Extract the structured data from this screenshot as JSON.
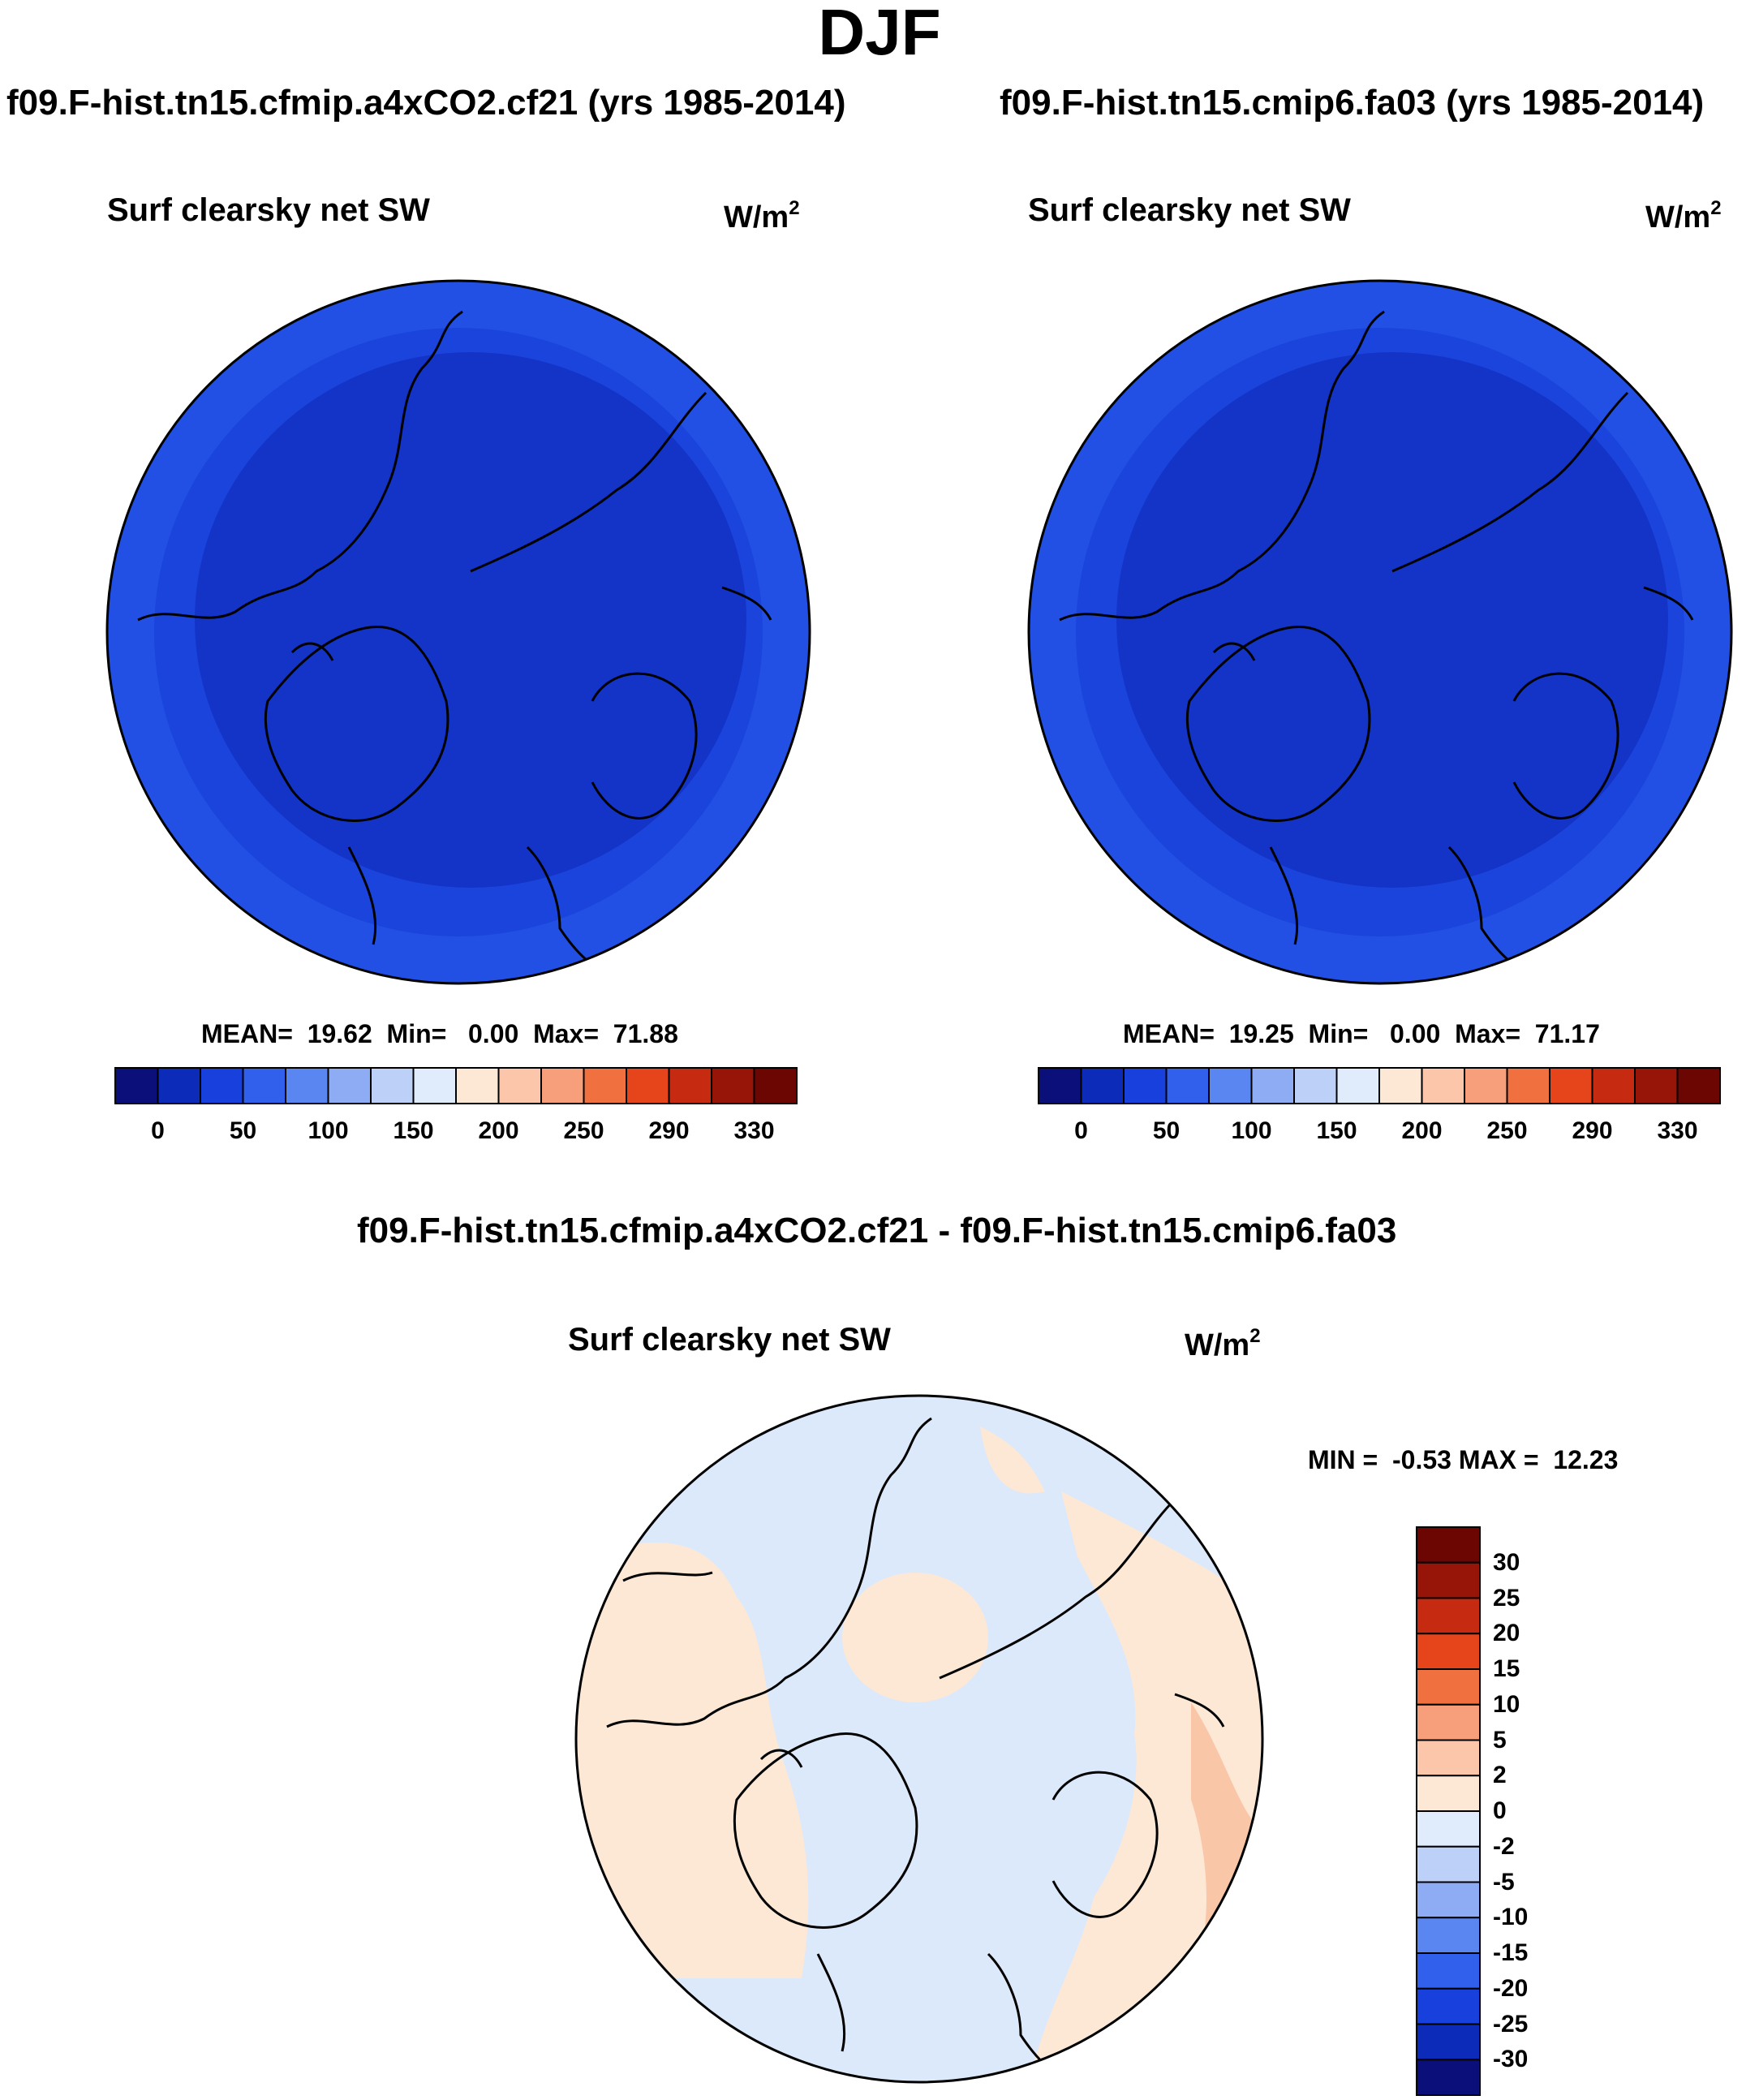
{
  "figure": {
    "season": "DJF"
  },
  "panels": [
    {
      "title": "f09.F-hist.tn15.cfmip.a4xCO2.cf21 (yrs 1985-2014)",
      "variable": "Surf clearsky net SW",
      "units": "W/m",
      "units_exp": "2",
      "stats": "MEAN=  19.62  Min=   0.00  Max=  71.88"
    },
    {
      "title": "f09.F-hist.tn15.cmip6.fa03 (yrs 1985-2014)",
      "variable": "Surf clearsky net SW",
      "units": "W/m",
      "units_exp": "2",
      "stats": "MEAN=  19.25  Min=   0.00  Max=  71.17"
    },
    {
      "title": "f09.F-hist.tn15.cfmip.a4xCO2.cf21 - f09.F-hist.tn15.cmip6.fa03",
      "variable": "Surf clearsky net SW",
      "units": "W/m",
      "units_exp": "2",
      "stats": "MIN =  -0.53 MAX =  12.23"
    }
  ],
  "colorbar_abs": {
    "colors": [
      "#0a0f7a",
      "#0b2bb8",
      "#1740dc",
      "#3160ec",
      "#5a86f2",
      "#8eacf4",
      "#bcd0f8",
      "#e0ecfb",
      "#fde8d6",
      "#fbc6a9",
      "#f79e7a",
      "#f0703f",
      "#e6451c",
      "#c62a10",
      "#961508",
      "#6b0603"
    ],
    "labels": [
      "0",
      "50",
      "100",
      "150",
      "200",
      "250",
      "290",
      "330"
    ]
  },
  "colorbar_diff": {
    "colors": [
      "#0a0f7a",
      "#0b2bb8",
      "#1740dc",
      "#3160ec",
      "#5a86f2",
      "#8eacf4",
      "#bcd0f8",
      "#e0ecfb",
      "#fde8d6",
      "#fbc6a9",
      "#f79e7a",
      "#f0703f",
      "#e6451c",
      "#c62a10",
      "#961508",
      "#6b0603"
    ],
    "labels": [
      "30",
      "25",
      "20",
      "15",
      "10",
      "5",
      "2",
      "0",
      "-2",
      "-5",
      "-10",
      "-15",
      "-20",
      "-25",
      "-30"
    ]
  },
  "map_colors": {
    "deep_blue": "#1433c7",
    "mid_blue": "#1a44dc",
    "light_blue": "#dbe9fb",
    "peach": "#fde8d6",
    "salmon": "#f9c7a8",
    "coast": "#000000"
  }
}
